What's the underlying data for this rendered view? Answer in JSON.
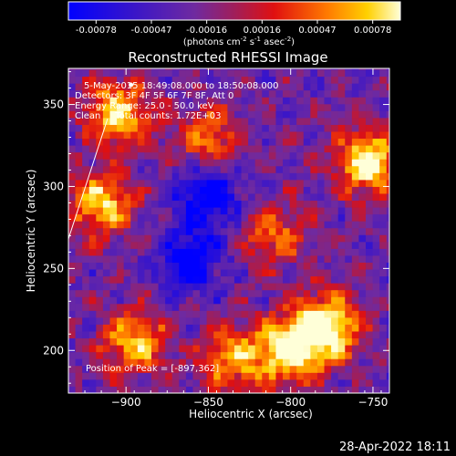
{
  "chart_data": {
    "type": "heatmap",
    "title": "Reconstructed RHESSI Image",
    "xlabel": "Heliocentric X (arcsec)",
    "ylabel": "Heliocentric Y (arcsec)",
    "xlim": [
      -935,
      -740
    ],
    "ylim": [
      174,
      372
    ],
    "x_ticks": [
      -900,
      -850,
      -800,
      -750
    ],
    "y_ticks": [
      200,
      250,
      300,
      350
    ],
    "colorbar": {
      "ticks": [
        "-0.00078",
        "-0.00047",
        "-0.00016",
        "0.00016",
        "0.00047",
        "0.00078"
      ],
      "label_main": "(photons cm",
      "label_exp1": "-2",
      "label_mid1": " s",
      "label_exp2": "-1",
      "label_mid2": " asec",
      "label_exp3": "-2",
      "label_end": ")",
      "range": [
        -0.00078,
        0.00078
      ]
    },
    "annotations": [
      "5-May-2015 18:49:08.000 to 18:50:08.000",
      "Detectors: 3F 4F 5F 6F 7F 8F, Att 0",
      "Energy Range: 25.0 - 50.0 keV",
      "Clean     Total counts: 1.72E+03"
    ],
    "peak_label": "Position of Peak = [-897,362]",
    "peak": [
      -897,
      362
    ],
    "bright_regions": [
      {
        "x": -778,
        "y": 215,
        "intensity": 0.95
      },
      {
        "x": -800,
        "y": 200,
        "intensity": 0.85
      },
      {
        "x": -752,
        "y": 315,
        "intensity": 0.9
      },
      {
        "x": -915,
        "y": 290,
        "intensity": 0.75
      },
      {
        "x": -905,
        "y": 345,
        "intensity": 0.8
      },
      {
        "x": -895,
        "y": 205,
        "intensity": 0.7
      },
      {
        "x": -835,
        "y": 195,
        "intensity": 0.65
      },
      {
        "x": -850,
        "y": 330,
        "intensity": 0.55
      },
      {
        "x": -810,
        "y": 270,
        "intensity": 0.5
      }
    ],
    "dim_regions": [
      {
        "x": -850,
        "y": 295,
        "intensity": -0.6
      },
      {
        "x": -860,
        "y": 255,
        "intensity": -0.5
      }
    ]
  },
  "timestamp": "28-Apr-2022 18:11"
}
